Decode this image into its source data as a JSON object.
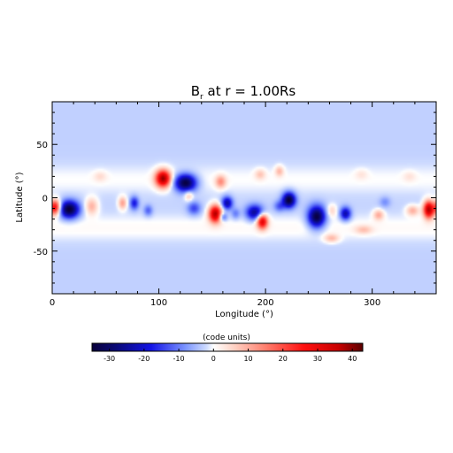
{
  "chart_data": {
    "type": "heatmap",
    "title": "B",
    "title_sub": "r",
    "title_rest": " at r = 1.00Rs",
    "xlabel": "Longitude (°)",
    "ylabel": "Latitude (°)",
    "xlim": [
      0,
      360
    ],
    "ylim": [
      -90,
      90
    ],
    "x_ticks": [
      0,
      100,
      200,
      300
    ],
    "y_ticks": [
      -50,
      0,
      50
    ],
    "colorbar": {
      "label": "(code units)",
      "range": [
        -35,
        43
      ],
      "ticks": [
        -30,
        -20,
        -10,
        0,
        10,
        20,
        30,
        40
      ],
      "stops": [
        {
          "value": -35,
          "color": "#08003a"
        },
        {
          "value": -28,
          "color": "#0a0a78"
        },
        {
          "value": -18,
          "color": "#1414e6"
        },
        {
          "value": -8,
          "color": "#7d96ff"
        },
        {
          "value": -2,
          "color": "#cfdcff"
        },
        {
          "value": 0,
          "color": "#ffffff"
        },
        {
          "value": 6,
          "color": "#ffd2c4"
        },
        {
          "value": 15,
          "color": "#ff7f6e"
        },
        {
          "value": 26,
          "color": "#ff1010"
        },
        {
          "value": 36,
          "color": "#c80000"
        },
        {
          "value": 43,
          "color": "#5a0000"
        }
      ]
    },
    "background_value": -3,
    "bands": [
      {
        "lat": 17,
        "lat_sigma": 10,
        "value": 3
      },
      {
        "lat": -28,
        "lat_sigma": 9,
        "value": 3.5
      }
    ],
    "features": [
      {
        "lon": 3,
        "lat": -9,
        "value": 32,
        "rx": 5,
        "ry": 7
      },
      {
        "lon": 16,
        "lat": -11,
        "value": -33,
        "rx": 9,
        "ry": 8
      },
      {
        "lon": 37,
        "lat": -8,
        "value": 12,
        "rx": 6,
        "ry": 8
      },
      {
        "lon": 66,
        "lat": -5,
        "value": 14,
        "rx": 4,
        "ry": 6
      },
      {
        "lon": 77,
        "lat": -5,
        "value": -16,
        "rx": 4,
        "ry": 6
      },
      {
        "lon": 90,
        "lat": -12,
        "value": -10,
        "rx": 4,
        "ry": 5
      },
      {
        "lon": 104,
        "lat": 18,
        "value": 40,
        "rx": 7,
        "ry": 8
      },
      {
        "lon": 125,
        "lat": 14,
        "value": -34,
        "rx": 10,
        "ry": 8
      },
      {
        "lon": 133,
        "lat": -10,
        "value": -12,
        "rx": 6,
        "ry": 6
      },
      {
        "lon": 128,
        "lat": 2,
        "value": 10,
        "rx": 4,
        "ry": 5
      },
      {
        "lon": 158,
        "lat": 15,
        "value": 14,
        "rx": 5,
        "ry": 6
      },
      {
        "lon": 153,
        "lat": -15,
        "value": 40,
        "rx": 6,
        "ry": 8
      },
      {
        "lon": 164,
        "lat": -5,
        "value": -22,
        "rx": 5,
        "ry": 6
      },
      {
        "lon": 160,
        "lat": -18,
        "value": -14,
        "rx": 4,
        "ry": 4
      },
      {
        "lon": 172,
        "lat": -15,
        "value": -8,
        "rx": 4,
        "ry": 5
      },
      {
        "lon": 190,
        "lat": -14,
        "value": -24,
        "rx": 8,
        "ry": 7
      },
      {
        "lon": 197,
        "lat": -22,
        "value": 34,
        "rx": 5,
        "ry": 7
      },
      {
        "lon": 195,
        "lat": 22,
        "value": 8,
        "rx": 5,
        "ry": 5
      },
      {
        "lon": 213,
        "lat": -8,
        "value": -10,
        "rx": 5,
        "ry": 5
      },
      {
        "lon": 222,
        "lat": -2,
        "value": -33,
        "rx": 6,
        "ry": 7
      },
      {
        "lon": 213,
        "lat": 25,
        "value": 10,
        "rx": 4,
        "ry": 5
      },
      {
        "lon": 248,
        "lat": -18,
        "value": -33,
        "rx": 8,
        "ry": 10
      },
      {
        "lon": 262,
        "lat": -12,
        "value": 8,
        "rx": 5,
        "ry": 6
      },
      {
        "lon": 275,
        "lat": -15,
        "value": -22,
        "rx": 5,
        "ry": 6
      },
      {
        "lon": 262,
        "lat": -38,
        "value": 10,
        "rx": 7,
        "ry": 4
      },
      {
        "lon": 292,
        "lat": -30,
        "value": 8,
        "rx": 8,
        "ry": 4
      },
      {
        "lon": 306,
        "lat": -16,
        "value": 12,
        "rx": 5,
        "ry": 5
      },
      {
        "lon": 312,
        "lat": -4,
        "value": -6,
        "rx": 5,
        "ry": 5
      },
      {
        "lon": 338,
        "lat": -12,
        "value": 12,
        "rx": 6,
        "ry": 5
      },
      {
        "lon": 353,
        "lat": -11,
        "value": 40,
        "rx": 5,
        "ry": 8
      },
      {
        "lon": 45,
        "lat": 20,
        "value": 5,
        "rx": 6,
        "ry": 5
      },
      {
        "lon": 290,
        "lat": 22,
        "value": 4,
        "rx": 6,
        "ry": 5
      },
      {
        "lon": 335,
        "lat": 20,
        "value": 4,
        "rx": 6,
        "ry": 5
      }
    ]
  }
}
